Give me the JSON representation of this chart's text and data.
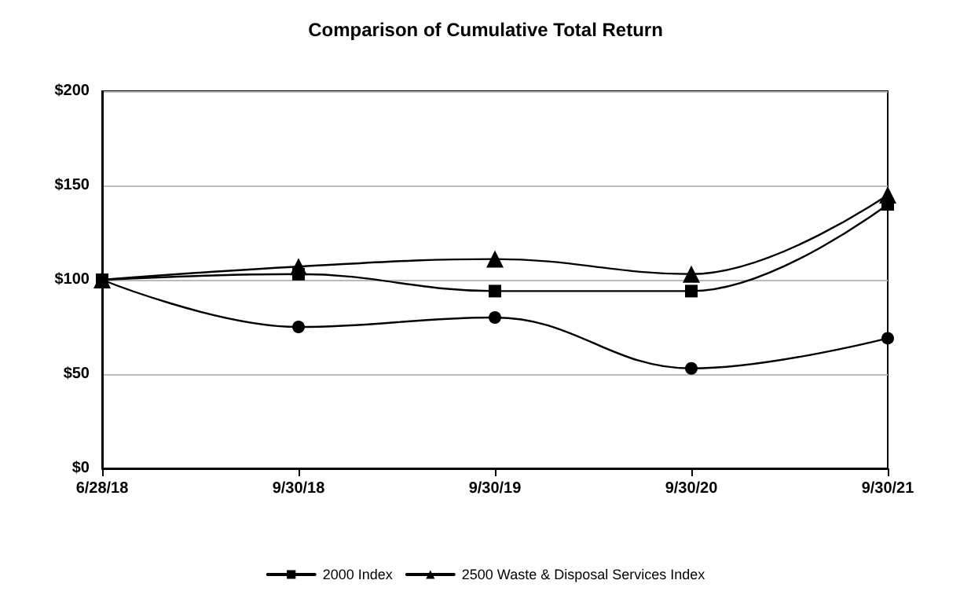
{
  "chart_data": {
    "type": "line",
    "title": "Comparison of Cumulative Total Return",
    "categories": [
      "6/28/18",
      "9/30/18",
      "9/30/19",
      "9/30/20",
      "9/30/21"
    ],
    "series": [
      {
        "name": "2000 Index",
        "color": "#000000",
        "marker": "square",
        "values": [
          100,
          103,
          94,
          94,
          140
        ]
      },
      {
        "name": "2500 Waste & Disposal Services Index",
        "color": "#000000",
        "marker": "triangle",
        "values": [
          100,
          107,
          111,
          103,
          145
        ]
      },
      {
        "color": "#000000",
        "marker": "circle",
        "values": [
          100,
          75,
          80,
          53,
          69
        ]
      }
    ],
    "ylim": [
      0,
      200
    ],
    "yticks": [
      {
        "value": 0,
        "label": "$0"
      },
      {
        "value": 50,
        "label": "$50"
      },
      {
        "value": 100,
        "label": "$100"
      },
      {
        "value": 150,
        "label": "$150"
      },
      {
        "value": 200,
        "label": "$200"
      }
    ],
    "grid": "y",
    "legend": "bottom",
    "line_style": "solid"
  }
}
